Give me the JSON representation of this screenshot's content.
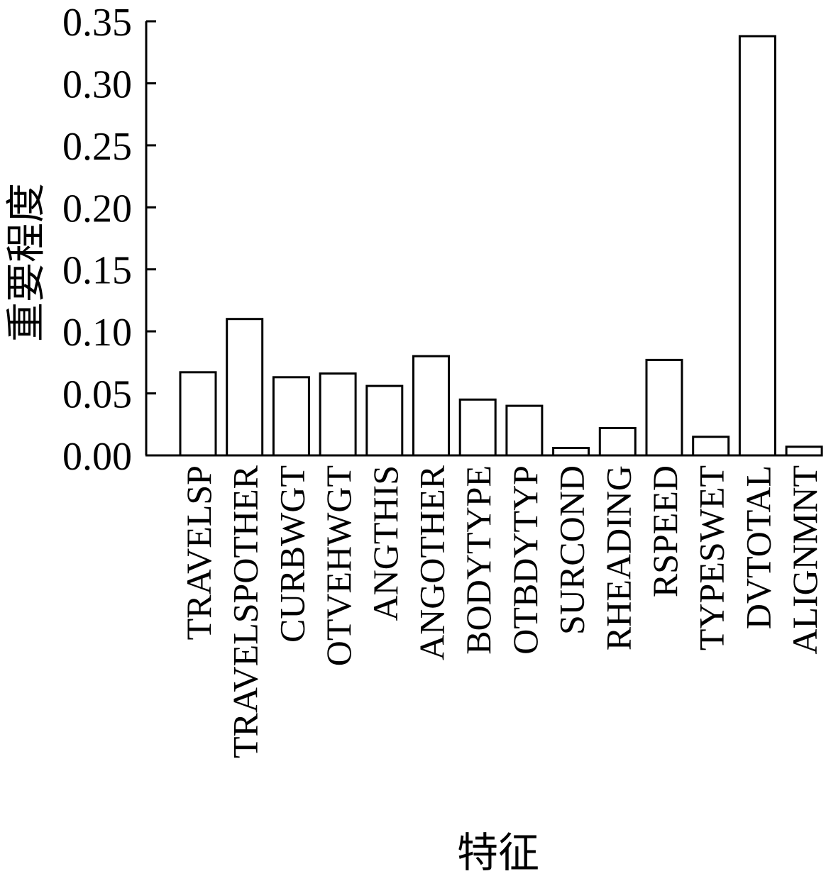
{
  "chart_data": {
    "type": "bar",
    "title": "",
    "xlabel": "特征",
    "ylabel": "重要程度",
    "categories": [
      "TRAVELSP",
      "TRAVELSPOTHER",
      "CURBWGT",
      "OTVEHWGT",
      "ANGTHIS",
      "ANGOTHER",
      "BODYTYPE",
      "OTBDYTYP",
      "SURCOND",
      "RHEADING",
      "RSPEED",
      "TYPESWET",
      "DVTOTAL",
      "ALIGNMNT"
    ],
    "values": [
      0.067,
      0.11,
      0.063,
      0.066,
      0.056,
      0.08,
      0.045,
      0.04,
      0.006,
      0.022,
      0.077,
      0.015,
      0.338,
      0.007
    ],
    "yticks": [
      "0.00",
      "0.05",
      "0.10",
      "0.15",
      "0.20",
      "0.25",
      "0.30",
      "0.35"
    ],
    "ylim": [
      0,
      0.35
    ],
    "grid": false,
    "legend": "none",
    "bar_fill": "#ffffff",
    "bar_stroke": "#000000"
  }
}
